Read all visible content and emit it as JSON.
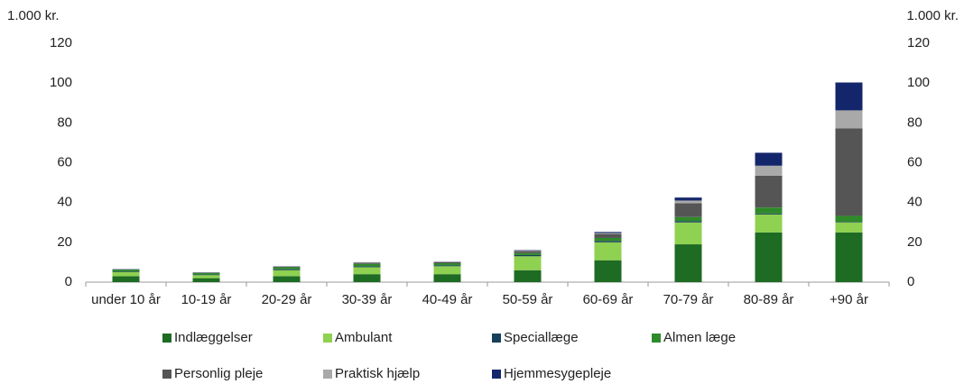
{
  "chart_data": {
    "type": "stacked_bar",
    "y_label": "1.000 kr.",
    "y2_label": "1.000 kr.",
    "categories": [
      "under 10 år",
      "10-19 år",
      "20-29 år",
      "30-39 år",
      "40-49 år",
      "50-59 år",
      "60-69 år",
      "70-79 år",
      "80-89 år",
      "+90 år"
    ],
    "series": [
      {
        "name": "Indlæggelser",
        "color": "#1e6b23",
        "values": [
          3,
          2,
          3,
          4,
          4,
          6,
          11,
          19,
          25,
          25
        ]
      },
      {
        "name": "Ambulant",
        "color": "#8fd150",
        "values": [
          2,
          1.5,
          3,
          3.5,
          4,
          7,
          9,
          11,
          9,
          5
        ]
      },
      {
        "name": "Speciallæge",
        "color": "#17405a",
        "values": [
          0.3,
          0.3,
          0.5,
          0.5,
          0.5,
          0.6,
          0.7,
          0.7,
          0.5,
          0.3
        ]
      },
      {
        "name": "Almen læge",
        "color": "#2f8a2a",
        "values": [
          1,
          0.8,
          1,
          1.2,
          1,
          1,
          1.5,
          2,
          3,
          3
        ]
      },
      {
        "name": "Personlig pleje",
        "color": "#555555",
        "values": [
          0,
          0.2,
          0.3,
          0.5,
          0.5,
          1,
          2,
          7,
          16,
          44
        ]
      },
      {
        "name": "Praktisk hjælp",
        "color": "#a9a9a9",
        "values": [
          0,
          0,
          0.1,
          0.2,
          0.2,
          0.3,
          0.5,
          1.3,
          5,
          9
        ]
      },
      {
        "name": "Hjemmesygepleje",
        "color": "#14266b",
        "values": [
          0.2,
          0.1,
          0.1,
          0.1,
          0.1,
          0.2,
          0.5,
          1.5,
          6.5,
          14
        ]
      }
    ],
    "ylim": [
      0,
      120
    ],
    "yticks": [
      0,
      20,
      40,
      60,
      80,
      100,
      120
    ],
    "y2lim": [
      0,
      120
    ],
    "y2ticks": [
      0,
      20,
      40,
      60,
      80,
      100,
      120
    ],
    "grid": false,
    "legend": "bottom"
  }
}
